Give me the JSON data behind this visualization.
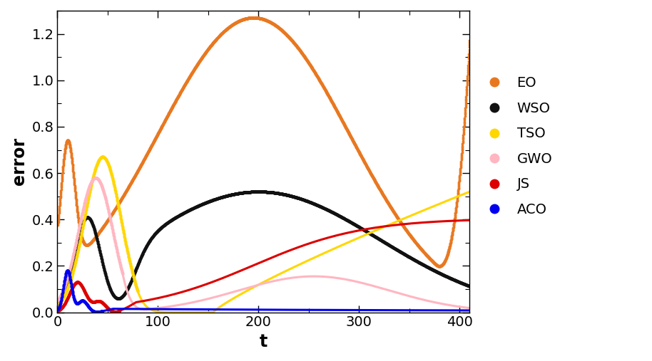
{
  "title": "",
  "xlabel": "t",
  "ylabel": "error",
  "xlim": [
    0,
    410
  ],
  "ylim": [
    -0.01,
    1.3
  ],
  "yticks": [
    0.0,
    0.2,
    0.4,
    0.6,
    0.8,
    1.0,
    1.2
  ],
  "xticks": [
    0,
    100,
    200,
    300,
    400
  ],
  "colors": {
    "EO": "#E87820",
    "WSO": "#111111",
    "TSO": "#FFD700",
    "GWO": "#FFB6C1",
    "JS": "#DD0000",
    "ACO": "#0000EE"
  },
  "legend_order": [
    "EO",
    "WSO",
    "TSO",
    "GWO",
    "JS",
    "ACO"
  ],
  "figsize": [
    9.14,
    5.07
  ],
  "dpi": 100
}
